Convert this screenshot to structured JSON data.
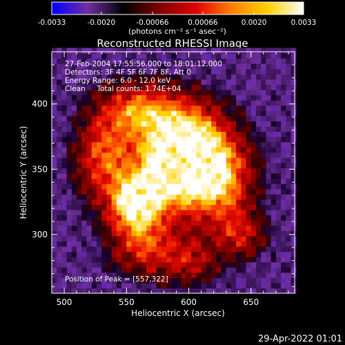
{
  "chart_data": {
    "type": "heatmap",
    "title": "Reconstructed RHESSI Image",
    "xlabel": "Heliocentric X (arcsec)",
    "ylabel": "Heliocentric Y (arcsec)",
    "xlim": [
      490,
      685
    ],
    "ylim": [
      255,
      440
    ],
    "x_ticks": [
      {
        "value": 500,
        "label": "500"
      },
      {
        "value": 550,
        "label": "550"
      },
      {
        "value": 600,
        "label": "600"
      },
      {
        "value": 650,
        "label": "650"
      }
    ],
    "y_ticks": [
      {
        "value": 300,
        "label": "300"
      },
      {
        "value": 350,
        "label": "350"
      },
      {
        "value": 400,
        "label": "400"
      }
    ],
    "colorbar": {
      "range": [
        -0.0033,
        0.0033
      ],
      "tick_values": [
        -0.0033,
        -0.002,
        -0.00066,
        0.00066,
        0.002,
        0.0033
      ],
      "tick_labels": [
        "-0.0033",
        "-0.0020",
        "-0.00066",
        "0.00066",
        "0.0020",
        "0.0033"
      ],
      "unit_label": "(photons cm⁻² s⁻¹ asec⁻²)",
      "colors": [
        "#0000ff",
        "#7030a0",
        "#000000",
        "#800000",
        "#e00000",
        "#ff8000",
        "#ffd000",
        "#ffffff"
      ]
    },
    "peak": {
      "x": 557,
      "y": 322,
      "label": "Position of Peak = [557,322]"
    },
    "sources": [
      {
        "x": 557,
        "y": 323,
        "amp": 1.0,
        "sx": 14,
        "sy": 14
      },
      {
        "x": 600,
        "y": 365,
        "amp": 0.95,
        "sx": 20,
        "sy": 22
      },
      {
        "x": 585,
        "y": 350,
        "amp": 0.75,
        "sx": 30,
        "sy": 25
      },
      {
        "x": 625,
        "y": 340,
        "amp": 0.55,
        "sx": 18,
        "sy": 22
      },
      {
        "x": 560,
        "y": 395,
        "amp": 0.65,
        "sx": 22,
        "sy": 14
      },
      {
        "x": 530,
        "y": 360,
        "amp": 0.5,
        "sx": 14,
        "sy": 20
      },
      {
        "x": 565,
        "y": 290,
        "amp": 0.5,
        "sx": 18,
        "sy": 14
      },
      {
        "x": 640,
        "y": 300,
        "amp": 0.4,
        "sx": 14,
        "sy": 12
      },
      {
        "x": 600,
        "y": 280,
        "amp": 0.35,
        "sx": 16,
        "sy": 12
      }
    ],
    "annotations": [
      "27-Feb-2004 17:55:56.000 to 18:01:12.000",
      "Detectors: 3F 4F 5F 6F 7F 8F, Att 0",
      "Energy Range: 6.0 - 12.0 keV",
      "Clean     Total counts: 1.74E+04"
    ],
    "timestamp": "29-Apr-2022 01:01"
  },
  "colors": {
    "background": "#000000",
    "foreground": "#ffffff"
  }
}
